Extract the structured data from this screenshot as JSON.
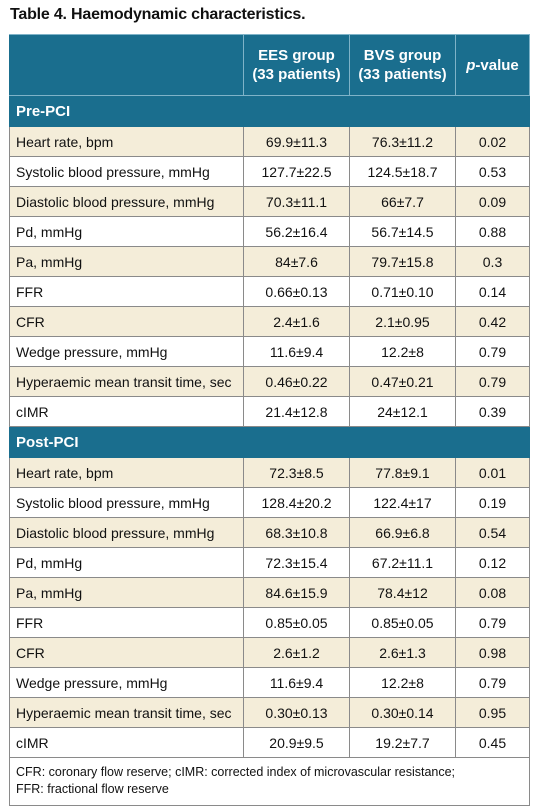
{
  "caption": "Table 4. Haemodynamic characteristics.",
  "header": {
    "col1": "",
    "col2_line1": "EES group",
    "col2_line2": "(33 patients)",
    "col3_line1": "BVS group",
    "col3_line2": "(33 patients)",
    "col4_italic": "p",
    "col4_rest": "-value"
  },
  "sections": [
    {
      "title": "Pre-PCI",
      "rows": [
        {
          "label": "Heart rate, bpm",
          "ees": "69.9±11.3",
          "bvs": "76.3±11.2",
          "p": "0.02"
        },
        {
          "label": "Systolic blood pressure, mmHg",
          "ees": "127.7±22.5",
          "bvs": "124.5±18.7",
          "p": "0.53"
        },
        {
          "label": "Diastolic blood pressure, mmHg",
          "ees": "70.3±11.1",
          "bvs": "66±7.7",
          "p": "0.09"
        },
        {
          "label": "Pd, mmHg",
          "ees": "56.2±16.4",
          "bvs": "56.7±14.5",
          "p": "0.88"
        },
        {
          "label": "Pa, mmHg",
          "ees": "84±7.6",
          "bvs": "79.7±15.8",
          "p": "0.3"
        },
        {
          "label": "FFR",
          "ees": "0.66±0.13",
          "bvs": "0.71±0.10",
          "p": "0.14"
        },
        {
          "label": "CFR",
          "ees": "2.4±1.6",
          "bvs": "2.1±0.95",
          "p": "0.42"
        },
        {
          "label": "Wedge pressure, mmHg",
          "ees": "11.6±9.4",
          "bvs": "12.2±8",
          "p": "0.79"
        },
        {
          "label": "Hyperaemic mean transit time, sec",
          "ees": "0.46±0.22",
          "bvs": "0.47±0.21",
          "p": "0.79"
        },
        {
          "label": "cIMR",
          "ees": "21.4±12.8",
          "bvs": "24±12.1",
          "p": "0.39"
        }
      ]
    },
    {
      "title": "Post-PCI",
      "rows": [
        {
          "label": "Heart rate, bpm",
          "ees": "72.3±8.5",
          "bvs": "77.8±9.1",
          "p": "0.01"
        },
        {
          "label": "Systolic blood pressure, mmHg",
          "ees": "128.4±20.2",
          "bvs": "122.4±17",
          "p": "0.19"
        },
        {
          "label": "Diastolic blood pressure, mmHg",
          "ees": "68.3±10.8",
          "bvs": "66.9±6.8",
          "p": "0.54"
        },
        {
          "label": "Pd, mmHg",
          "ees": "72.3±15.4",
          "bvs": "67.2±11.1",
          "p": "0.12"
        },
        {
          "label": "Pa, mmHg",
          "ees": "84.6±15.9",
          "bvs": "78.4±12",
          "p": "0.08"
        },
        {
          "label": "FFR",
          "ees": "0.85±0.05",
          "bvs": "0.85±0.05",
          "p": "0.79"
        },
        {
          "label": "CFR",
          "ees": "2.6±1.2",
          "bvs": "2.6±1.3",
          "p": "0.98"
        },
        {
          "label": "Wedge pressure, mmHg",
          "ees": "11.6±9.4",
          "bvs": "12.2±8",
          "p": "0.79"
        },
        {
          "label": "Hyperaemic mean transit time, sec",
          "ees": "0.30±0.13",
          "bvs": "0.30±0.14",
          "p": "0.95"
        },
        {
          "label": "cIMR",
          "ees": "20.9±9.5",
          "bvs": "19.2±7.7",
          "p": "0.45"
        }
      ]
    }
  ],
  "footnote_line1": "CFR: coronary flow reserve; cIMR: corrected index of microvascular resistance;",
  "footnote_line2": "FFR: fractional flow reserve",
  "colors": {
    "header_bg": "#1a6e8e",
    "stripe": "#f4edd9"
  }
}
